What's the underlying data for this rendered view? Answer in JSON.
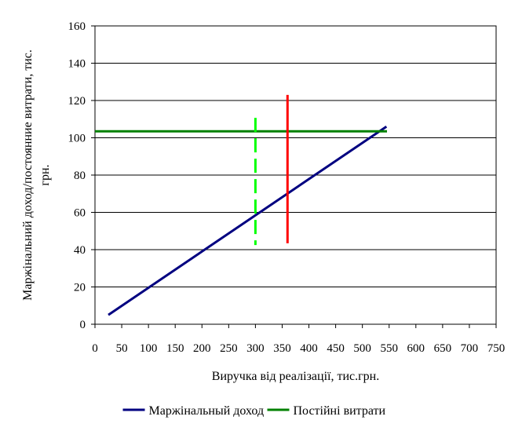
{
  "chart_data": {
    "type": "line",
    "xlabel": "Виручка від реалізації, тис.грн.",
    "ylabel": [
      "Маржінальний доход/постоянние витрати, тис.",
      "грн."
    ],
    "xlim": [
      0,
      750
    ],
    "xticks": [
      0,
      50,
      100,
      150,
      200,
      250,
      300,
      350,
      400,
      450,
      500,
      550,
      600,
      650,
      700,
      750
    ],
    "ylim": [
      0,
      160
    ],
    "yticks": [
      0,
      20,
      40,
      60,
      80,
      100,
      120,
      140,
      160
    ],
    "grid": true,
    "legend": "bottom",
    "series": [
      {
        "name": "Маржінальный доход",
        "color": "#000080",
        "x": [
          25,
          545
        ],
        "values": [
          5,
          106
        ]
      },
      {
        "name": "Постійні витрати",
        "color": "#008000",
        "x": [
          0,
          546
        ],
        "values": [
          103.5,
          103.5
        ]
      },
      {
        "color": "#00ff00",
        "dashed": true,
        "x": [
          300,
          300
        ],
        "values": [
          110.7,
          42.5
        ]
      },
      {
        "color": "#ff0000",
        "x": [
          360,
          360
        ],
        "values": [
          123,
          43.4
        ]
      }
    ]
  }
}
